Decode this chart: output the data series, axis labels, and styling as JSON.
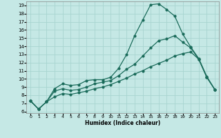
{
  "xlabel": "Humidex (Indice chaleur)",
  "bg_color": "#c5e8e5",
  "grid_color": "#a8d4d0",
  "line_color": "#1a6b5a",
  "xlim": [
    -0.5,
    23.5
  ],
  "ylim": [
    5.8,
    19.5
  ],
  "xticks": [
    0,
    1,
    2,
    3,
    4,
    5,
    6,
    7,
    8,
    9,
    10,
    11,
    12,
    13,
    14,
    15,
    16,
    17,
    18,
    19,
    20,
    21,
    22,
    23
  ],
  "yticks": [
    6,
    7,
    8,
    9,
    10,
    11,
    12,
    13,
    14,
    15,
    16,
    17,
    18,
    19
  ],
  "line1_y": [
    7.3,
    6.3,
    7.2,
    8.8,
    9.4,
    9.2,
    9.3,
    9.8,
    9.9,
    9.9,
    10.2,
    11.3,
    13.0,
    15.3,
    17.2,
    19.1,
    19.2,
    18.5,
    17.7,
    15.5,
    13.9,
    12.5,
    10.3,
    8.7
  ],
  "line2_y": [
    7.3,
    6.3,
    7.2,
    8.5,
    8.8,
    8.6,
    8.7,
    9.0,
    9.4,
    9.6,
    9.8,
    10.4,
    11.2,
    11.8,
    12.8,
    13.8,
    14.7,
    14.9,
    15.3,
    14.5,
    13.8,
    12.4,
    10.2,
    8.7
  ],
  "line3_y": [
    7.3,
    6.3,
    7.2,
    7.8,
    8.2,
    8.1,
    8.3,
    8.5,
    8.8,
    9.0,
    9.3,
    9.7,
    10.1,
    10.6,
    11.0,
    11.5,
    11.9,
    12.3,
    12.8,
    13.1,
    13.3,
    12.4,
    10.2,
    8.7
  ]
}
